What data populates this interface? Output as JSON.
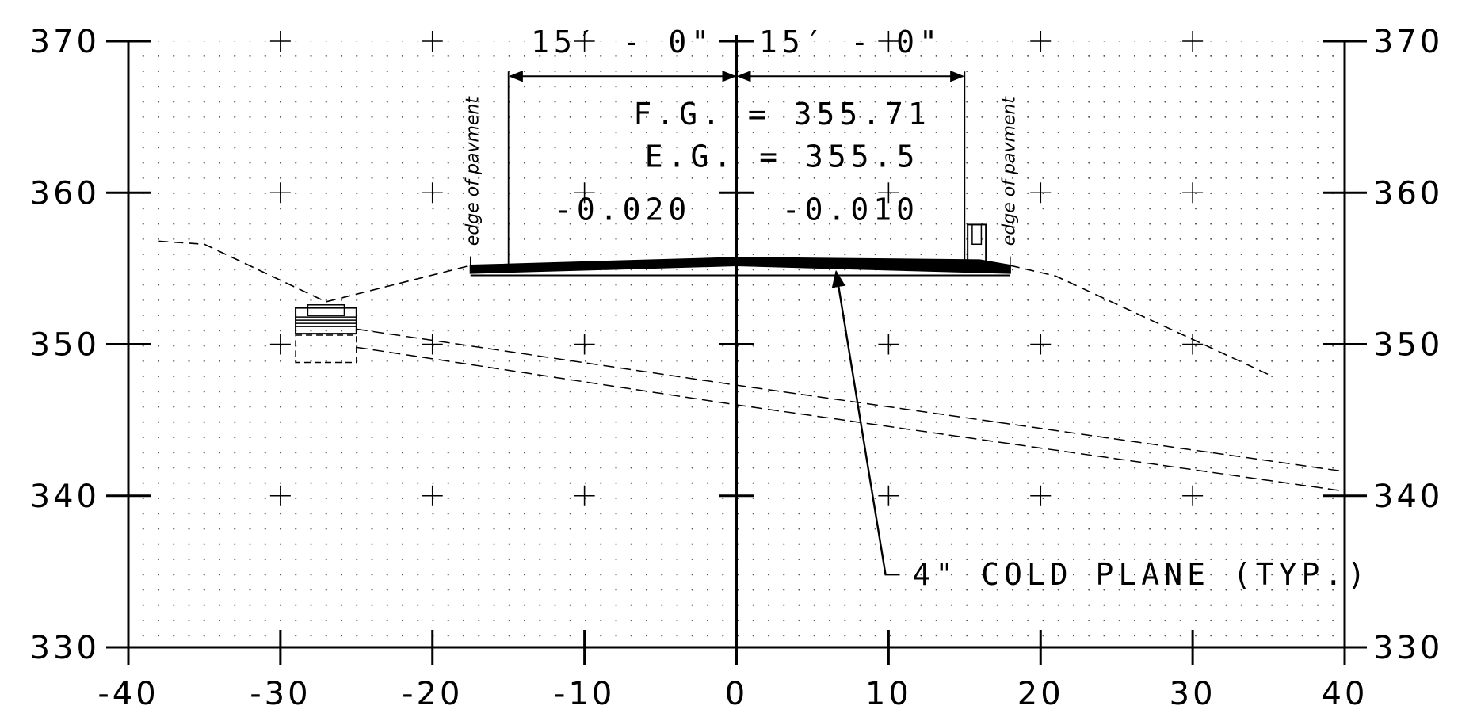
{
  "chart_data": {
    "type": "cross-section",
    "x_axis": {
      "range": [
        -40,
        40
      ],
      "ticks": [
        -40,
        -30,
        -20,
        -10,
        0,
        10,
        20,
        30,
        40
      ],
      "tick_labels": [
        "-40",
        "-30",
        "-20",
        "-10",
        "0",
        "10",
        "20",
        "30",
        "40"
      ]
    },
    "y_axis": {
      "range": [
        330,
        370
      ],
      "ticks": [
        330,
        340,
        350,
        360,
        370
      ],
      "tick_labels": [
        "330",
        "340",
        "350",
        "360",
        "370"
      ],
      "labels_on_both_sides": true
    },
    "grid": "dotted",
    "dimensions": [
      {
        "text": "15′ - 0\"",
        "from_x": -15,
        "to_x": 0,
        "y": 368
      },
      {
        "text": "15′ - 0\"",
        "from_x": 0,
        "to_x": 15,
        "y": 368
      }
    ],
    "finished_grade_label": "F.G. = 355.71",
    "existing_grade_label": "E.G. = 355.5",
    "cross_slopes": [
      {
        "text": "-0.020",
        "side": "left"
      },
      {
        "text": "-0.010",
        "side": "right"
      }
    ],
    "edge_of_pavement_labels": [
      "edge of pavment",
      "edge of pavment"
    ],
    "callout": {
      "text": "4\" COLD PLANE (TYP.)",
      "target": [
        6.5,
        355.0
      ]
    },
    "existing_ground": [
      [
        -38,
        356.8
      ],
      [
        -35,
        356.6
      ],
      [
        -27,
        352.8
      ],
      [
        -17.5,
        355.2
      ]
    ],
    "existing_ground_right": [
      [
        18,
        355.2
      ],
      [
        21,
        354.5
      ],
      [
        35,
        348.0
      ]
    ],
    "pavement_surface": [
      [
        -17.5,
        355.2
      ],
      [
        0,
        355.71
      ],
      [
        16,
        355.55
      ],
      [
        18,
        355.2
      ]
    ],
    "pavement_bottom": [
      [
        -17.5,
        354.7
      ],
      [
        0,
        355.2
      ],
      [
        18,
        354.7
      ]
    ],
    "underground_lines": [
      [
        [
          -25,
          351.0
        ],
        [
          0,
          347.3
        ],
        [
          40,
          341.6
        ]
      ],
      [
        [
          -25,
          349.8
        ],
        [
          0,
          346.0
        ],
        [
          40,
          340.3
        ]
      ]
    ]
  }
}
